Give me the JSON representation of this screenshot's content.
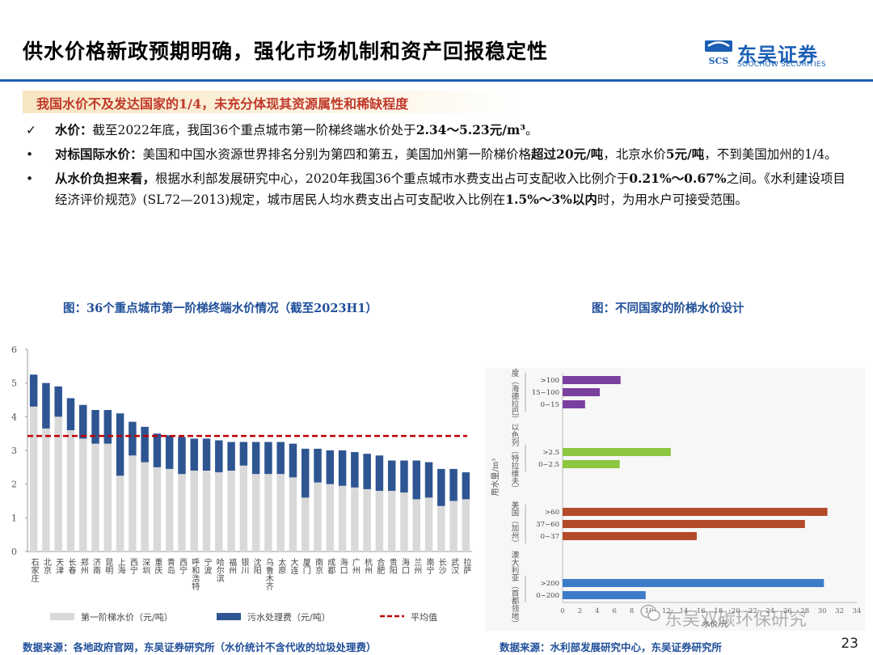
{
  "header": {
    "title": "供水价格新政预期明确，强化市场机制和资产回报稳定性",
    "logo_cn": "东吴证券",
    "logo_en": "SOOCHOW SECURITIES",
    "logo_mark": "SCS",
    "accent_color": "#1a5fb4"
  },
  "subtitle": "我国水价不及发达国家的1/4，未充分体现其资源属性和稀缺程度",
  "bullets": [
    {
      "marker": "✓",
      "lead": "水价：",
      "text": "截至2022年底，我国36个重点城市第一阶梯终端水价处于",
      "bold_tail": "2.34～5.23元/m³",
      "tail": "。"
    },
    {
      "marker": "•",
      "lead": "对标国际水价：",
      "text1": "美国和中国水资源世界排名分别为第四和第五，美国加州第一阶梯价格",
      "bold1": "超过20元/吨",
      "text2": "，北京水价",
      "bold2": "5元/吨",
      "text3": "，不到美国加州的1/4。"
    },
    {
      "marker": "•",
      "lead": "从水价负担来看，",
      "text1": "根据水利部发展研究中心，2020年我国36个重点城市水费支出占可支配收入比例介于",
      "bold1": "0.21%～0.67%",
      "text2": "之间。《水利建设项目经济评价规范》(SL72—2013)规定，城市居民人均水费支出占可支配收入比例在",
      "bold2": "1.5%～3%以内",
      "text3": "时，为用水户可接受范围。"
    }
  ],
  "captions": {
    "left": "图：36个重点城市第一阶梯终端水价情况（截至2023H1）",
    "right": "图：不同国家的阶梯水价设计"
  },
  "sources": {
    "left": "数据来源：各地政府官网，东吴证券研究所（水价统计不含代收的垃圾处理费）",
    "right": "数据来源：水利部发展研究中心，东吴证券研究所"
  },
  "page_number": "23",
  "watermark": "东吴双碳环保研究",
  "chart_data": [
    {
      "type": "bar",
      "stacked": true,
      "ylim": [
        0,
        6
      ],
      "yticks": [
        "0",
        "1",
        "2",
        "3",
        "4",
        "5",
        "6"
      ],
      "grid": false,
      "legend_position": "bottom",
      "categories": [
        "石家庄",
        "北京",
        "天津",
        "长春",
        "郑州",
        "济南",
        "昆明",
        "上海",
        "西宁",
        "深圳",
        "重庆",
        "青岛",
        "西宁",
        "呼和浩特",
        "宁波",
        "哈尔滨",
        "福州",
        "银川",
        "沈阳",
        "乌鲁木齐",
        "太原",
        "大连",
        "厦门",
        "南京",
        "成都",
        "海口",
        "广州",
        "杭州",
        "合肥",
        "贵阳",
        "海口",
        "兰州",
        "南宁",
        "长沙",
        "武汉",
        "拉萨"
      ],
      "series": [
        {
          "name": "第一阶梯水价（元/吨）",
          "color": "#d9d9d9",
          "values": [
            4.3,
            3.65,
            4.0,
            3.6,
            3.35,
            3.2,
            3.2,
            2.25,
            2.85,
            2.65,
            2.5,
            2.45,
            2.3,
            2.4,
            2.4,
            2.35,
            2.4,
            2.55,
            2.3,
            2.3,
            2.3,
            2.2,
            1.6,
            2.05,
            2.0,
            1.95,
            1.9,
            1.85,
            1.8,
            1.8,
            1.75,
            1.55,
            1.6,
            1.35,
            1.5,
            1.55
          ]
        },
        {
          "name": "污水处理费（元/吨）",
          "color": "#2e5592",
          "values": [
            0.95,
            1.35,
            0.9,
            0.95,
            1.0,
            1.0,
            1.0,
            1.85,
            1.0,
            1.05,
            1.0,
            1.0,
            1.1,
            0.95,
            0.95,
            0.95,
            0.85,
            0.7,
            0.95,
            0.95,
            0.95,
            1.0,
            1.45,
            1.0,
            1.0,
            1.05,
            1.05,
            1.05,
            1.05,
            0.9,
            0.95,
            1.15,
            1.05,
            1.1,
            0.95,
            0.8
          ]
        }
      ],
      "average": {
        "name": "平均值",
        "value": 3.43,
        "color": "#c00000"
      }
    },
    {
      "type": "bar",
      "orientation": "horizontal",
      "ylabel": "用水量/m³",
      "xlabel": "水价/元",
      "xlim": [
        0,
        34
      ],
      "xticks": [
        "0",
        "2",
        "4",
        "6",
        "8",
        "10",
        "12",
        "14",
        "16",
        "18",
        "20",
        "22",
        "24",
        "26",
        "28",
        "30",
        "32",
        "34"
      ],
      "groups": [
        {
          "name": "印度（海德拉巴）",
          "color": "#7b3fa0",
          "bars": [
            {
              "label": ">100",
              "value": 6.7
            },
            {
              "label": "15~100",
              "value": 4.3
            },
            {
              "label": "0~15",
              "value": 2.6
            }
          ]
        },
        {
          "name": "以色列（特拉维夫）",
          "color": "#8dc63f",
          "bars": [
            {
              "label": ">2.5",
              "value": 12.5
            },
            {
              "label": "0~2.5",
              "value": 6.6
            }
          ]
        },
        {
          "name": "美国（加州）",
          "color": "#b34a2a",
          "bars": [
            {
              "label": ">60",
              "value": 30.6
            },
            {
              "label": "37~60",
              "value": 28.0
            },
            {
              "label": "0~37",
              "value": 15.5
            }
          ]
        },
        {
          "name": "澳大利亚（首都领地）",
          "color": "#3d7cc9",
          "bars": [
            {
              "label": ">200",
              "value": 30.2
            },
            {
              "label": "0~200",
              "value": 9.6
            }
          ]
        }
      ]
    }
  ]
}
